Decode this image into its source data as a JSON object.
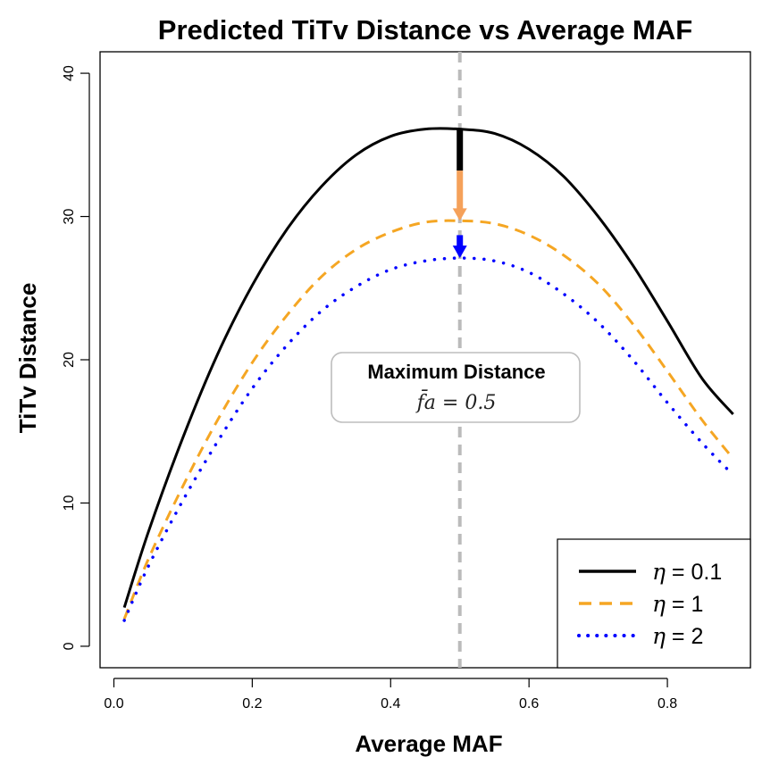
{
  "chart_data": {
    "type": "line",
    "title": "Predicted TiTv Distance vs Average MAF",
    "xlabel": "Average MAF",
    "ylabel": "TiTv Distance",
    "xlim": [
      -0.02,
      0.92
    ],
    "ylim": [
      -1.5,
      41.5
    ],
    "x_ticks": [
      0.0,
      0.2,
      0.4,
      0.6,
      0.8
    ],
    "x_tick_labels": [
      "0.0",
      "0.2",
      "0.4",
      "0.6",
      "0.8"
    ],
    "y_ticks": [
      0,
      10,
      20,
      30,
      40
    ],
    "y_tick_labels": [
      "0",
      "10",
      "20",
      "30",
      "40"
    ],
    "grid": false,
    "legend_position": "bottom-right",
    "legend_symbol": "η",
    "series": [
      {
        "name": "η = 0.1",
        "eta": "0.1",
        "line_style": "solid",
        "color": "#000000",
        "x": [
          0.015,
          0.05,
          0.1,
          0.15,
          0.2,
          0.25,
          0.3,
          0.35,
          0.4,
          0.45,
          0.5,
          0.55,
          0.6,
          0.65,
          0.7,
          0.75,
          0.8,
          0.85,
          0.895
        ],
        "y": [
          2.7,
          8.0,
          14.6,
          20.4,
          25.2,
          29.1,
          32.1,
          34.3,
          35.6,
          36.1,
          36.1,
          35.8,
          34.7,
          32.8,
          30.0,
          26.6,
          22.7,
          18.7,
          16.2
        ]
      },
      {
        "name": "η = 1",
        "eta": "1",
        "line_style": "dashed",
        "color": "#f5a623",
        "x": [
          0.015,
          0.05,
          0.1,
          0.15,
          0.2,
          0.25,
          0.3,
          0.35,
          0.4,
          0.45,
          0.5,
          0.55,
          0.6,
          0.65,
          0.7,
          0.75,
          0.8,
          0.85,
          0.895
        ],
        "y": [
          1.9,
          6.1,
          11.2,
          15.8,
          19.8,
          23.1,
          25.8,
          27.7,
          28.9,
          29.6,
          29.7,
          29.5,
          28.7,
          27.3,
          25.3,
          22.5,
          19.2,
          15.8,
          13.1
        ]
      },
      {
        "name": "η = 2",
        "eta": "2",
        "line_style": "dotted",
        "color": "#0000ff",
        "x": [
          0.015,
          0.05,
          0.1,
          0.15,
          0.2,
          0.25,
          0.3,
          0.35,
          0.4,
          0.45,
          0.5,
          0.55,
          0.6,
          0.65,
          0.7,
          0.75,
          0.8,
          0.85,
          0.89
        ],
        "y": [
          1.8,
          5.6,
          10.2,
          14.3,
          18.0,
          21.0,
          23.4,
          25.1,
          26.3,
          26.9,
          27.1,
          26.9,
          26.1,
          24.6,
          22.6,
          20.0,
          17.0,
          14.2,
          12.2
        ]
      }
    ],
    "reference_line": {
      "x": 0.5,
      "color": "#bbbbbb",
      "style": "dashed"
    },
    "arrows": [
      {
        "x": 0.5,
        "from_y": 33.2,
        "to_y": 29.7,
        "color": "#f5a15a"
      },
      {
        "x": 0.5,
        "from_y": 28.7,
        "to_y": 27.1,
        "color": "#0000ff"
      }
    ],
    "peak_marker": {
      "x": 0.5,
      "from_y": 36.1,
      "to_y": 33.2,
      "color": "#000000"
    },
    "annotation": {
      "title": "Maximum Distance",
      "formula": "f̄a = 0.5",
      "x": 0.5,
      "y": 18.0
    }
  }
}
